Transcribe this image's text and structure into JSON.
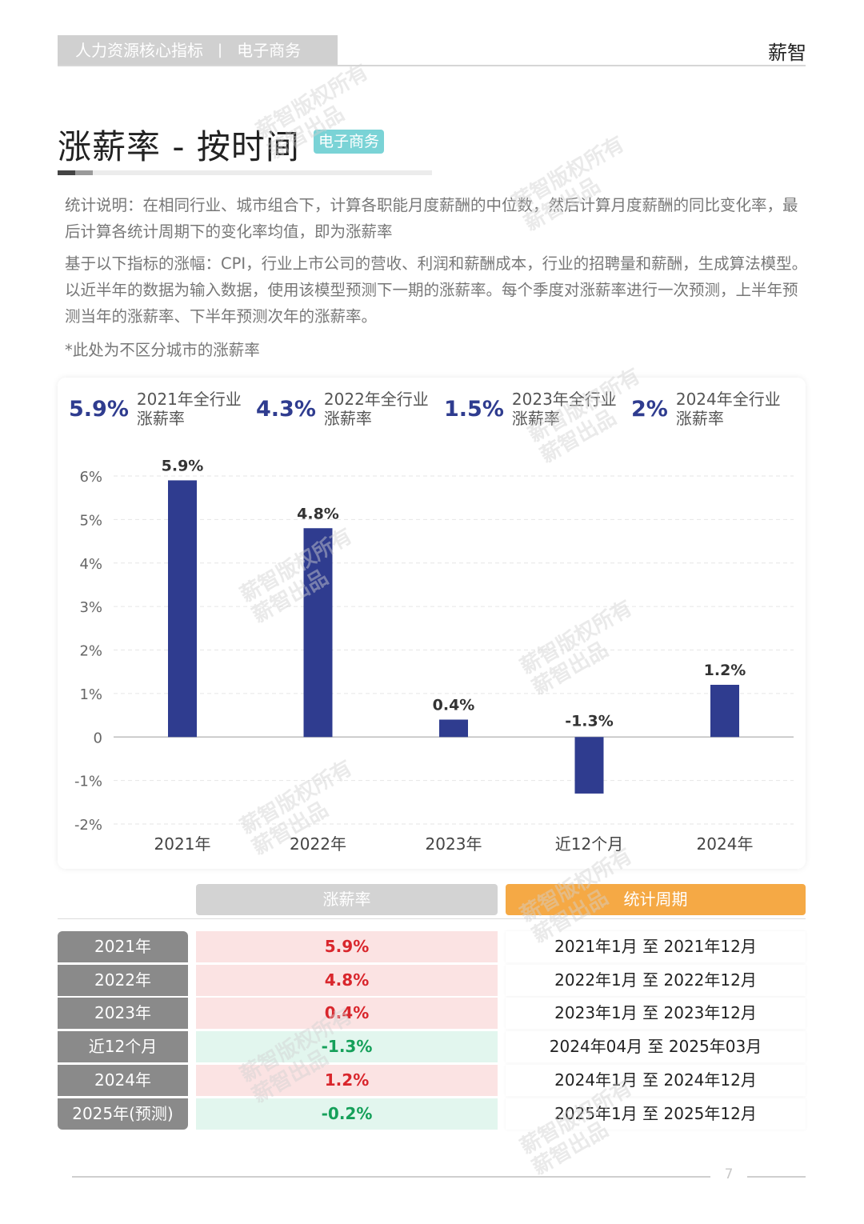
{
  "header": {
    "tab_title": "人力资源核心指标",
    "separator": "|",
    "tab_industry": "电子商务",
    "brand": "薪智"
  },
  "section": {
    "title": "涨薪率 - 按时间",
    "tag": "电子商务"
  },
  "notes": {
    "p1": "统计说明：在相同行业、城市组合下，计算各职能月度薪酬的中位数，然后计算月度薪酬的同比变化率，最后计算各统计周期下的变化率均值，即为涨薪率",
    "p2": "基于以下指标的涨幅：CPI，行业上市公司的营收、利润和薪酬成本，行业的招聘量和薪酬，生成算法模型。以近半年的数据为输入数据，使用该模型预测下一期的涨薪率。每个季度对涨薪率进行一次预测，上半年预测当年的涨薪率、下半年预测次年的涨薪率。",
    "p3": "*此处为不区分城市的涨薪率"
  },
  "kpis": [
    {
      "value": "5.9%",
      "label1": "2021年全行业",
      "label2": "涨薪率"
    },
    {
      "value": "4.3%",
      "label1": "2022年全行业",
      "label2": "涨薪率"
    },
    {
      "value": "1.5%",
      "label1": "2023年全行业",
      "label2": "涨薪率"
    },
    {
      "value": "2%",
      "label1": "2024年全行业",
      "label2": "涨薪率"
    }
  ],
  "chart_data": {
    "type": "bar",
    "categories": [
      "2021年",
      "2022年",
      "2023年",
      "近12个月",
      "2024年"
    ],
    "values": [
      5.9,
      4.8,
      0.4,
      -1.3,
      1.2
    ],
    "value_labels": [
      "5.9%",
      "4.8%",
      "0.4%",
      "-1.3%",
      "1.2%"
    ],
    "ylim": [
      -2,
      6
    ],
    "yticks": [
      6,
      5,
      4,
      3,
      2,
      1,
      0,
      -1,
      -2
    ],
    "ytick_labels": [
      "6%",
      "5%",
      "4%",
      "3%",
      "2%",
      "1%",
      "0",
      "-1%",
      "-2%"
    ],
    "grid": true,
    "bar_color": "#2f3c8f"
  },
  "table": {
    "headers": {
      "rate": "涨薪率",
      "period": "统计周期"
    },
    "rows": [
      {
        "year": "2021年",
        "rate": "5.9%",
        "sign": "pos",
        "period": "2021年1月 至 2021年12月"
      },
      {
        "year": "2022年",
        "rate": "4.8%",
        "sign": "pos",
        "period": "2022年1月 至 2022年12月"
      },
      {
        "year": "2023年",
        "rate": "0.4%",
        "sign": "pos",
        "period": "2023年1月 至 2023年12月"
      },
      {
        "year": "近12个月",
        "rate": "-1.3%",
        "sign": "neg",
        "period": "2024年04月 至 2025年03月"
      },
      {
        "year": "2024年",
        "rate": "1.2%",
        "sign": "pos",
        "period": "2024年1月 至 2024年12月"
      },
      {
        "year": "2025年(预测)",
        "rate": "-0.2%",
        "sign": "neg",
        "period": "2025年1月 至 2025年12月"
      }
    ]
  },
  "watermark": {
    "line1": "薪智版权所有",
    "line2": "薪智出品"
  },
  "page_number": "7",
  "colors": {
    "accent": "#2f3c8f",
    "tag": "#7ad3d6",
    "orange": "#f5a945",
    "positive": "#d9262c",
    "negative": "#15a05a"
  }
}
